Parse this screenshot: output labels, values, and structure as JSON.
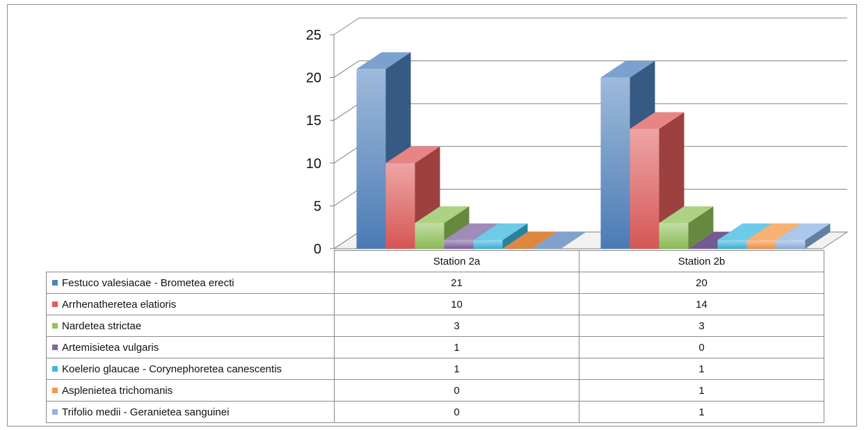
{
  "chart_data": {
    "type": "bar",
    "title": "",
    "xlabel": "",
    "ylabel": "",
    "ylim": [
      0,
      25
    ],
    "yticks": [
      0,
      5,
      10,
      15,
      20,
      25
    ],
    "grid": true,
    "legend_placement": "data-table",
    "categories": [
      "Station 2a",
      "Station 2b"
    ],
    "series": [
      {
        "name": "Festuco valesiacae - Brometea erecti",
        "values": [
          21,
          20
        ],
        "color": "#4f81bd"
      },
      {
        "name": "Arrhenatheretea elatioris",
        "values": [
          10,
          14
        ],
        "color": "#e05b5b"
      },
      {
        "name": "Nardetea strictae",
        "values": [
          3,
          3
        ],
        "color": "#92c35a"
      },
      {
        "name": "Artemisietea vulgaris",
        "values": [
          1,
          0
        ],
        "color": "#8064a2"
      },
      {
        "name": "Koelerio glaucae - Corynephoretea canescentis",
        "values": [
          1,
          1
        ],
        "color": "#3cb8e0"
      },
      {
        "name": "Asplenietea trichomanis",
        "values": [
          0,
          1
        ],
        "color": "#f79646"
      },
      {
        "name": "Trifolio medii - Geranietea sanguinei",
        "values": [
          0,
          1
        ],
        "color": "#8fb4e3"
      }
    ]
  }
}
